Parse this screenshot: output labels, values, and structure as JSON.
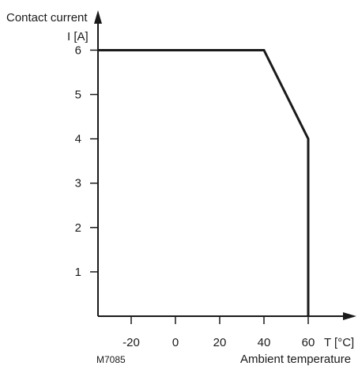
{
  "chart_data": {
    "type": "line",
    "title": "",
    "ylabel_top": "Contact current",
    "ylabel_unit": "I [A]",
    "xlabel_unit": "T [°C]",
    "xlabel_caption": "Ambient temperature",
    "figure_code": "M7085",
    "x_ticks": [
      -20,
      0,
      20,
      40,
      60
    ],
    "y_ticks": [
      1,
      2,
      3,
      4,
      5,
      6
    ],
    "xlim": [
      -35,
      75
    ],
    "ylim": [
      0,
      6.4
    ],
    "grid": false,
    "series": [
      {
        "x": [
          -35,
          40,
          60,
          60
        ],
        "y": [
          6,
          6,
          4,
          0
        ]
      }
    ],
    "line_color": "#1a1a1a"
  }
}
